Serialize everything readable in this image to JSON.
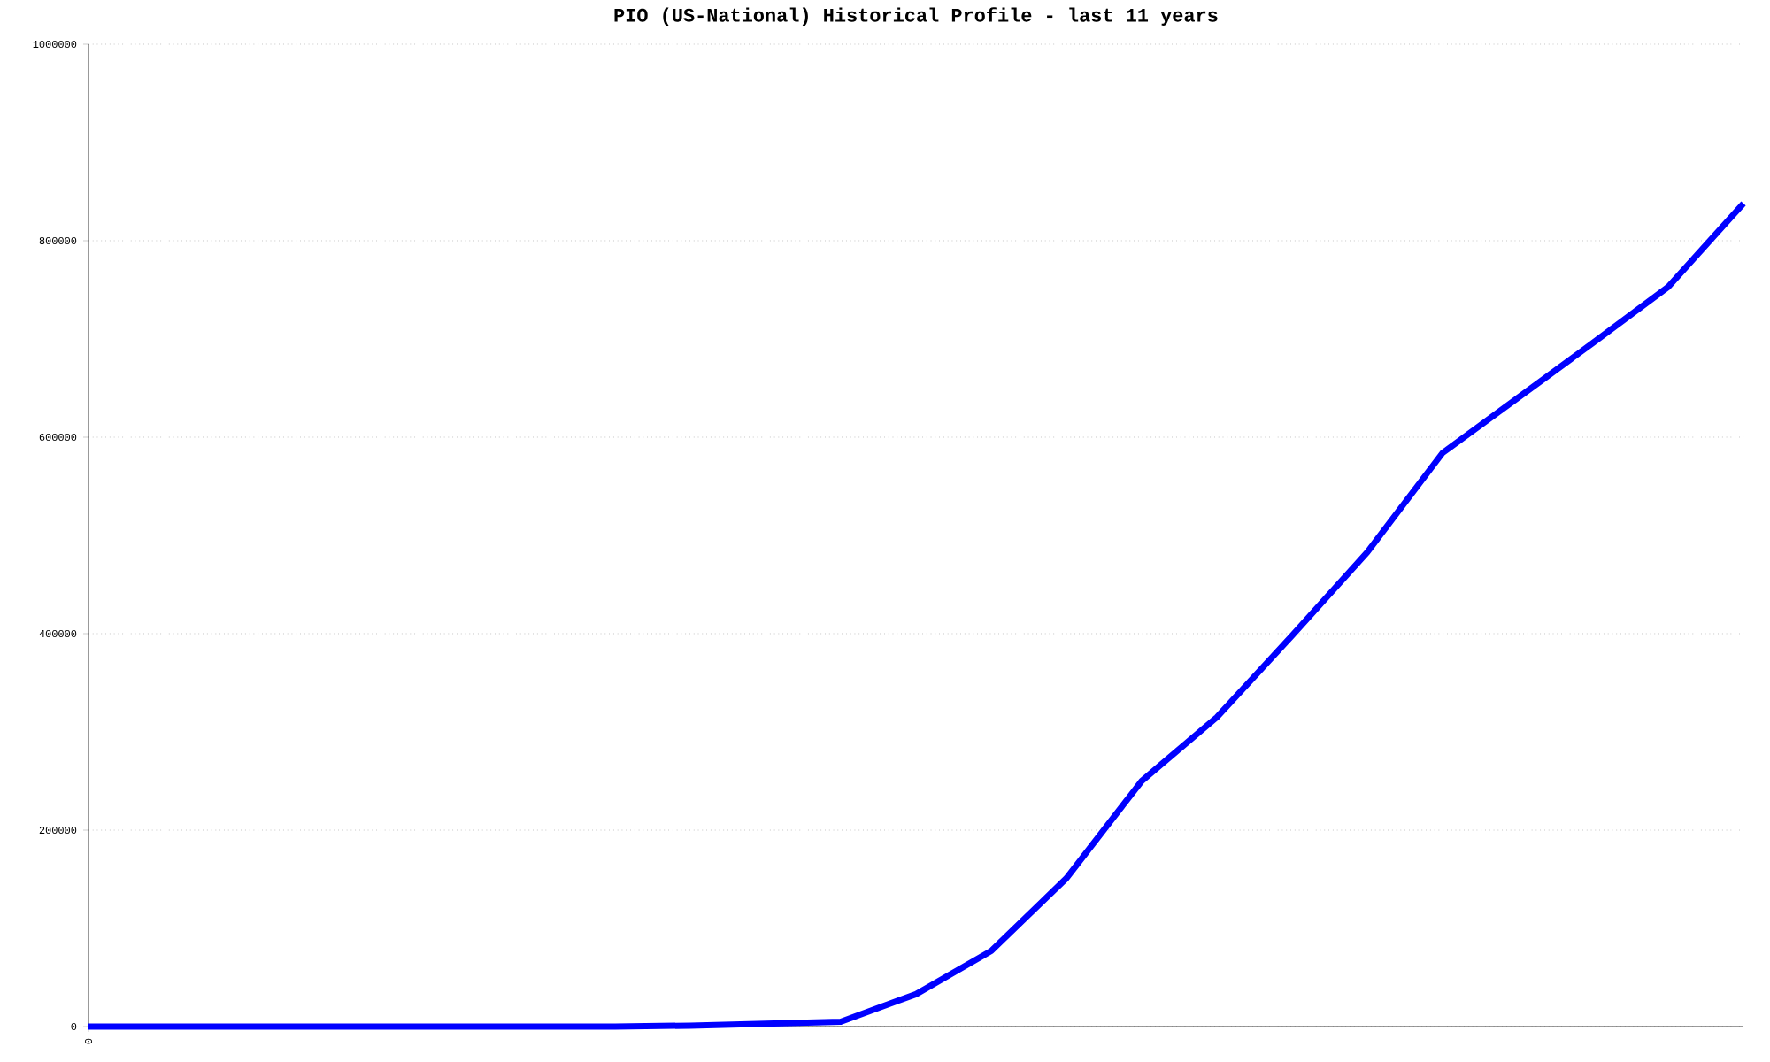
{
  "chart_data": {
    "type": "line",
    "title": "PIO (US-National) Historical Profile - last 11 years",
    "categories": [
      "0",
      null,
      null,
      null,
      null,
      null,
      null,
      null,
      null,
      null,
      null,
      null,
      null,
      null,
      null,
      null,
      null,
      null,
      null,
      null,
      null,
      null,
      null
    ],
    "series": [
      {
        "color": "#0000ff",
        "values": [
          0,
          0,
          0,
          0,
          0,
          0,
          0,
          0,
          1000,
          3000,
          5000,
          33000,
          77000,
          151000,
          250000,
          315000,
          398000,
          483000,
          584000,
          640000,
          696000,
          753000,
          838000
        ]
      }
    ],
    "ylim": [
      0,
      1000000
    ],
    "yticks": [
      0,
      200000,
      400000,
      600000,
      800000,
      1000000
    ],
    "grid": "y",
    "marker": "none",
    "line_style": "solid"
  }
}
